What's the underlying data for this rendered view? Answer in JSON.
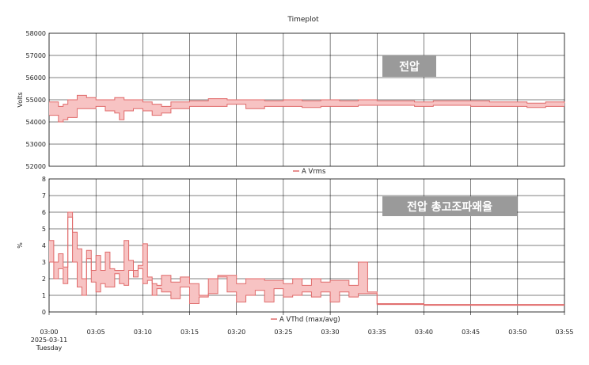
{
  "title": "Timeplot",
  "x_axis": {
    "tick_labels": [
      "03:00",
      "03:05",
      "03:10",
      "03:15",
      "03:20",
      "03:25",
      "03:30",
      "03:35",
      "03:40",
      "03:45",
      "03:50",
      "03:55"
    ],
    "date": "2025-03-11",
    "weekday": "Tuesday"
  },
  "colors": {
    "band_fill": "#f7c3c3",
    "band_line": "#e06a6a",
    "grid": "#000000",
    "badge": "#9a9a9a"
  },
  "chart_data": [
    {
      "type": "area",
      "title": "Timeplot",
      "ylabel": "Volts",
      "ylim": [
        52000,
        58000
      ],
      "yticks": [
        52000,
        53000,
        54000,
        55000,
        56000,
        57000,
        58000
      ],
      "xlim_minutes": [
        0,
        55
      ],
      "annotation": "전압",
      "series": [
        {
          "name": "A Vrms",
          "x_minutes": [
            0,
            1,
            1.5,
            2,
            3,
            4,
            5,
            6,
            7,
            7.5,
            8,
            9,
            10,
            11,
            12,
            13,
            15,
            17,
            19,
            21,
            23,
            25,
            27,
            29,
            31,
            33,
            35,
            37,
            39,
            41,
            43,
            45,
            47,
            49,
            51,
            53,
            55
          ],
          "low": [
            54300,
            54000,
            54100,
            54200,
            54600,
            54600,
            54700,
            54500,
            54400,
            54100,
            54500,
            54600,
            54500,
            54300,
            54400,
            54600,
            54700,
            54700,
            54800,
            54600,
            54700,
            54700,
            54650,
            54700,
            54700,
            54750,
            54750,
            54750,
            54700,
            54750,
            54750,
            54700,
            54700,
            54700,
            54650,
            54700,
            54700
          ],
          "high": [
            54900,
            54700,
            54800,
            55000,
            55200,
            55100,
            55000,
            55000,
            55100,
            55100,
            55000,
            55000,
            54900,
            54800,
            54700,
            54900,
            54950,
            55050,
            55000,
            55000,
            54950,
            55000,
            54950,
            55000,
            54950,
            55000,
            54950,
            54950,
            54900,
            54950,
            54950,
            54950,
            54900,
            54900,
            54850,
            54900,
            54850
          ]
        }
      ]
    },
    {
      "type": "area",
      "ylabel": "%",
      "ylim": [
        0,
        8
      ],
      "yticks": [
        0,
        1,
        2,
        3,
        4,
        5,
        6,
        7,
        8
      ],
      "xlim_minutes": [
        0,
        55
      ],
      "annotation": "전압 총고조파왜율",
      "series": [
        {
          "name": "A VThd (max/avg)",
          "x_minutes": [
            0,
            0.5,
            1,
            1.5,
            2,
            2.5,
            3,
            3.5,
            4,
            4.5,
            5,
            5.5,
            6,
            6.5,
            7,
            7.5,
            8,
            8.5,
            9,
            9.5,
            10,
            10.5,
            11,
            11.5,
            12,
            13,
            14,
            15,
            16,
            17,
            18,
            19,
            20,
            21,
            22,
            23,
            24,
            25,
            26,
            27,
            28,
            29,
            30,
            31,
            32,
            33,
            34,
            35,
            40,
            45,
            50,
            55
          ],
          "avg": [
            3,
            2,
            2.6,
            1.7,
            5.7,
            3,
            1.5,
            1,
            3.2,
            1.8,
            1.2,
            1.7,
            1.5,
            1.5,
            2.3,
            1.7,
            1.6,
            2.5,
            2.1,
            2.6,
            1.7,
            1.9,
            1,
            1.4,
            1.2,
            0.8,
            1.5,
            0.5,
            0.9,
            1.1,
            2.1,
            1.2,
            0.6,
            1,
            1.3,
            0.6,
            1.4,
            0.9,
            1,
            1.2,
            0.9,
            1.2,
            0.6,
            1.2,
            0.9,
            1.1,
            1.1,
            0.45,
            0.4,
            0.4,
            0.4,
            0.4
          ],
          "max": [
            4.3,
            3,
            3.5,
            2.7,
            6,
            4.8,
            3.8,
            2,
            3.7,
            2.5,
            3.4,
            2.5,
            3.6,
            2.6,
            2.5,
            2.5,
            4.3,
            3.1,
            2.5,
            2.8,
            4.1,
            2.1,
            1.7,
            1.6,
            2.2,
            1.8,
            2.1,
            1.7,
            1,
            2,
            2.2,
            2.2,
            1.7,
            2,
            2,
            1.9,
            1.9,
            1.7,
            2,
            1.6,
            2,
            1.8,
            1.9,
            1.9,
            1.6,
            3,
            1.2,
            0.5,
            0.45,
            0.45,
            0.45,
            0.45
          ]
        }
      ]
    }
  ]
}
